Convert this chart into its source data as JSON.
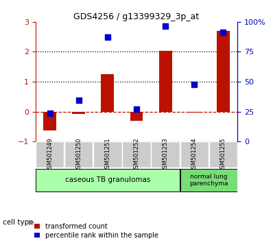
{
  "title": "GDS4256 / g13399329_3p_at",
  "samples": [
    "GSM501249",
    "GSM501250",
    "GSM501251",
    "GSM501252",
    "GSM501253",
    "GSM501254",
    "GSM501255"
  ],
  "red_values": [
    -0.62,
    -0.07,
    1.25,
    -0.3,
    2.03,
    -0.04,
    2.7
  ],
  "blue_values": [
    -0.06,
    0.37,
    2.5,
    0.08,
    2.87,
    0.9,
    2.65
  ],
  "ylim_left": [
    -1,
    3
  ],
  "ylim_right": [
    0,
    100
  ],
  "yticks_left": [
    -1,
    0,
    1,
    2,
    3
  ],
  "yticks_right": [
    0,
    25,
    50,
    75,
    100
  ],
  "ytick_labels_right": [
    "0",
    "25",
    "50",
    "75",
    "100%"
  ],
  "bar_color": "#bb1100",
  "square_color": "#0000cc",
  "cell_type_label": "cell type",
  "group1_label": "caseous TB granulomas",
  "group1_indices": [
    0,
    1,
    2,
    3,
    4
  ],
  "group2_label": "normal lung\nparenchyma",
  "group2_indices": [
    5,
    6
  ],
  "group1_color": "#aaffaa",
  "group2_color": "#77dd77",
  "tick_label_area_color": "#cccccc",
  "legend_red": "transformed count",
  "legend_blue": "percentile rank within the sample",
  "bar_width": 0.45
}
